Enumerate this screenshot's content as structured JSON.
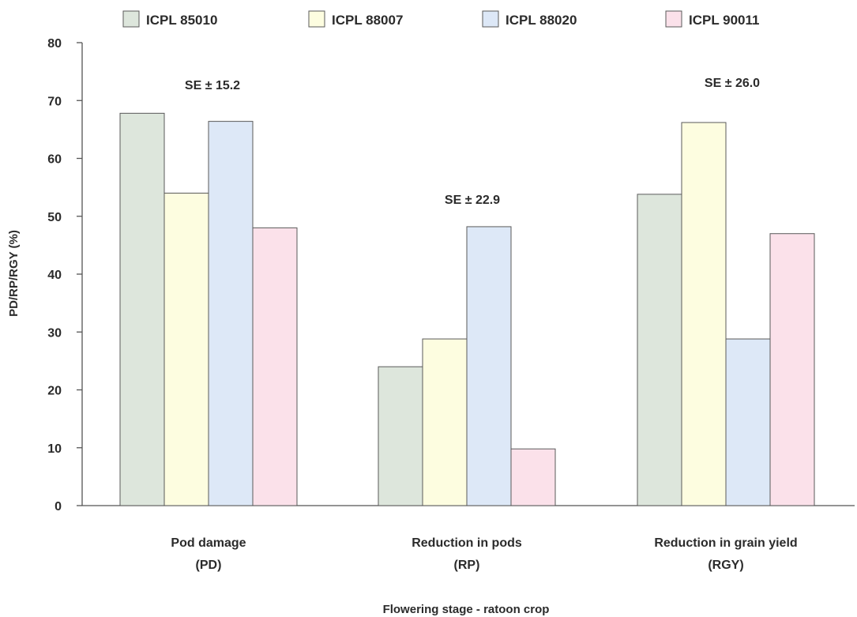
{
  "chart_data": {
    "type": "bar",
    "xlabel": "Flowering stage - ratoon crop",
    "ylabel": "PD/RP/RGY (%)",
    "ylim": [
      0,
      80
    ],
    "yticks": [
      0,
      10,
      20,
      30,
      40,
      50,
      60,
      70,
      80
    ],
    "grid": false,
    "legend_position": "top",
    "categories": [
      [
        "Pod damage",
        "(PD)"
      ],
      [
        "Reduction in pods",
        "(RP)"
      ],
      [
        "Reduction in grain yield",
        "(RGY)"
      ]
    ],
    "series": [
      {
        "name": "ICPL 85010",
        "color": "#dde6dc",
        "values": [
          67.8,
          24.0,
          53.8
        ]
      },
      {
        "name": "ICPL 88007",
        "color": "#fdfde0",
        "values": [
          54.0,
          28.8,
          66.2
        ]
      },
      {
        "name": "ICPL 88020",
        "color": "#dde8f7",
        "values": [
          66.4,
          48.2,
          28.8
        ]
      },
      {
        "name": "ICPL 90011",
        "color": "#fbe1ea",
        "values": [
          48.0,
          9.8,
          47.0
        ]
      }
    ],
    "annotations": [
      "SE ± 15.2",
      "SE ± 22.9",
      "SE ± 26.0"
    ]
  }
}
